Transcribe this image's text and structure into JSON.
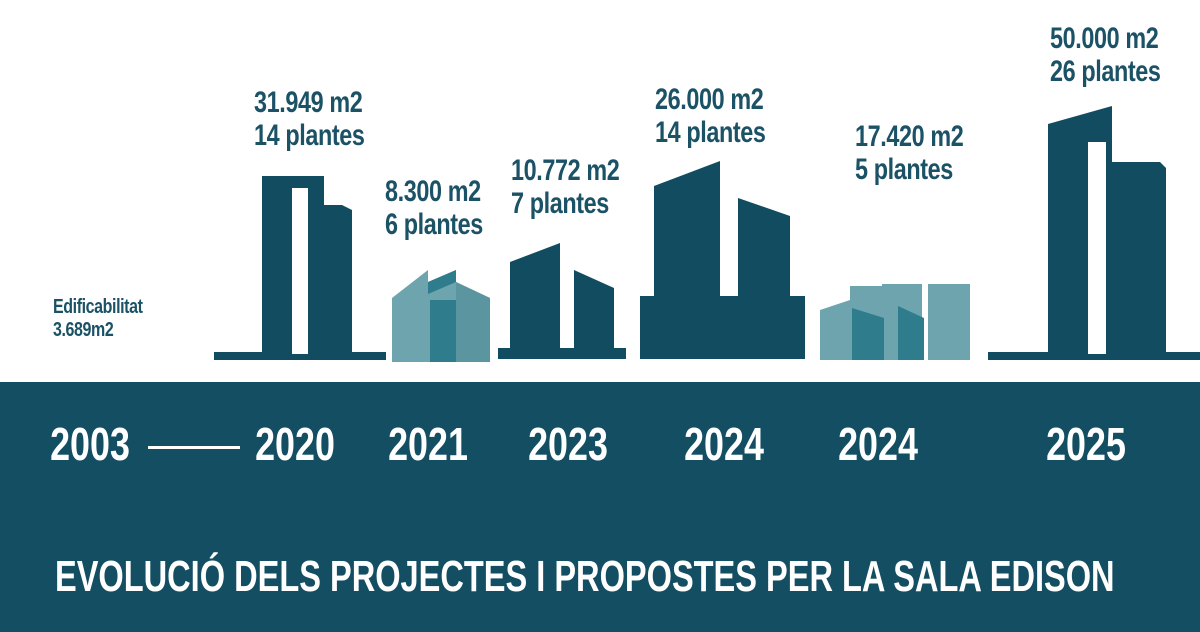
{
  "colors": {
    "dark": "#124c60",
    "light": "#6da4ae",
    "mid": "#2f7d8c",
    "band": "#134e62",
    "text_on_white": "#1b5266",
    "text_on_band": "#ffffff"
  },
  "projects": [
    {
      "year": "2003",
      "area": "Edificabilitat",
      "floors": "3.689m2",
      "shape": "none"
    },
    {
      "year": "2020",
      "area": "31.949 m2",
      "floors": "14 plantes",
      "shape": "dark-towers"
    },
    {
      "year": "2021",
      "area": "8.300 m2",
      "floors": "6 plantes",
      "shape": "light-sawtooth"
    },
    {
      "year": "2023",
      "area": "10.772 m2",
      "floors": "7 plantes",
      "shape": "dark-slanted"
    },
    {
      "year": "2024",
      "area": "26.000 m2",
      "floors": "14 plantes",
      "shape": "dark-large-slanted"
    },
    {
      "year": "2024",
      "area": "17.420 m2",
      "floors": "5 plantes",
      "shape": "light-blocks"
    },
    {
      "year": "2025",
      "area": "50.000 m2",
      "floors": "26 plantes",
      "shape": "dark-tall-towers"
    }
  ],
  "footer": {
    "title": "EVOLUCIÓ DELS PROJECTES I PROPOSTES PER LA SALA EDISON"
  }
}
